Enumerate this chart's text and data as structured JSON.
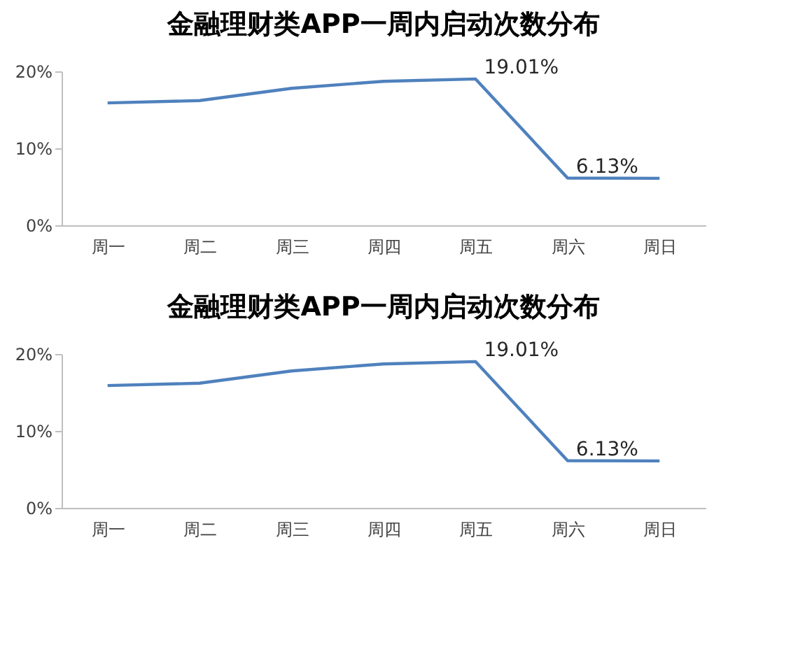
{
  "chart_data": [
    {
      "type": "line",
      "title": "金融理财类APP一周内启动次数分布",
      "categories": [
        "周一",
        "周二",
        "周三",
        "周四",
        "周五",
        "周六",
        "周日"
      ],
      "series": [
        {
          "color": "#4f81bd",
          "values": [
            15.9,
            16.2,
            17.8,
            18.7,
            19.01,
            6.13,
            6.1
          ],
          "value_labels": [
            null,
            null,
            null,
            null,
            "19.01%",
            "6.13%",
            null
          ]
        }
      ],
      "ylim": [
        0,
        20
      ],
      "yticks": [
        {
          "value": 0,
          "label": "0%"
        },
        {
          "value": 10,
          "label": "10%"
        },
        {
          "value": 20,
          "label": "20%"
        }
      ],
      "grid": false,
      "marker": "none",
      "line_style": "solid"
    },
    {
      "type": "line",
      "title": "金融理财类APP一周内启动次数分布",
      "categories": [
        "周一",
        "周二",
        "周三",
        "周四",
        "周五",
        "周六",
        "周日"
      ],
      "series": [
        {
          "color": "#4f81bd",
          "values": [
            15.9,
            16.2,
            17.8,
            18.7,
            19.01,
            6.13,
            6.1
          ],
          "value_labels": [
            null,
            null,
            null,
            null,
            "19.01%",
            "6.13%",
            null
          ]
        }
      ],
      "ylim": [
        0,
        20
      ],
      "yticks": [
        {
          "value": 0,
          "label": "0%"
        },
        {
          "value": 10,
          "label": "10%"
        },
        {
          "value": 20,
          "label": "20%"
        }
      ],
      "grid": false,
      "marker": "none",
      "line_style": "solid"
    }
  ]
}
